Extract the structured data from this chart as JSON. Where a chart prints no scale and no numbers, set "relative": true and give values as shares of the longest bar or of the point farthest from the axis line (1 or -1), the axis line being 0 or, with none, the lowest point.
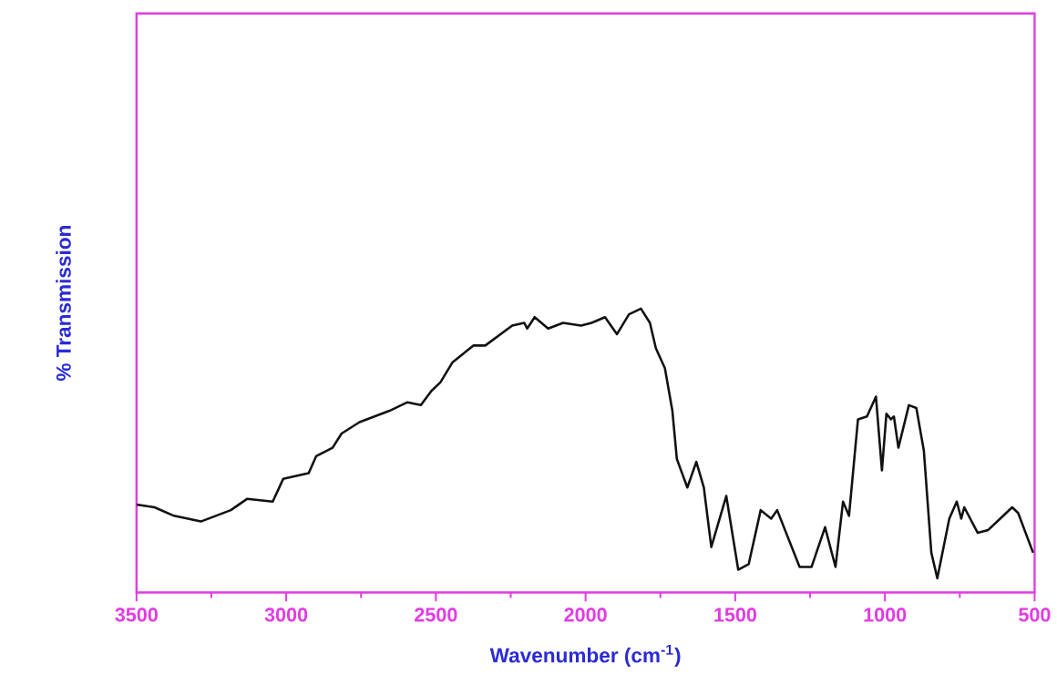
{
  "chart_data": {
    "type": "line",
    "relative": true,
    "xlabel": "Wavenumber  (cm$^{-1}$)",
    "ylabel": "% Transmission",
    "xlim": [
      3500,
      500
    ],
    "xticks": [
      3500,
      3000,
      2500,
      2000,
      1500,
      1000,
      500
    ],
    "x": [
      3500,
      3440,
      3375,
      3285,
      3185,
      3130,
      3045,
      3010,
      2925,
      2900,
      2845,
      2815,
      2755,
      2655,
      2595,
      2550,
      2515,
      2485,
      2445,
      2375,
      2335,
      2245,
      2205,
      2195,
      2170,
      2125,
      2075,
      2015,
      1980,
      1935,
      1895,
      1855,
      1815,
      1785,
      1765,
      1735,
      1710,
      1695,
      1660,
      1630,
      1605,
      1580,
      1530,
      1490,
      1455,
      1415,
      1380,
      1360,
      1285,
      1245,
      1200,
      1165,
      1140,
      1120,
      1090,
      1060,
      1030,
      1010,
      995,
      980,
      970,
      955,
      920,
      895,
      870,
      845,
      825,
      785,
      760,
      745,
      735,
      690,
      655,
      615,
      575,
      555,
      505
    ],
    "series": [
      {
        "color": "#111111",
        "values": [
          0.31,
          0.3,
          0.27,
          0.25,
          0.29,
          0.33,
          0.32,
          0.4,
          0.42,
          0.48,
          0.51,
          0.56,
          0.6,
          0.64,
          0.67,
          0.66,
          0.71,
          0.74,
          0.81,
          0.87,
          0.87,
          0.94,
          0.95,
          0.93,
          0.97,
          0.93,
          0.95,
          0.94,
          0.95,
          0.97,
          0.91,
          0.98,
          1.0,
          0.95,
          0.86,
          0.79,
          0.64,
          0.47,
          0.37,
          0.46,
          0.37,
          0.16,
          0.34,
          0.08,
          0.1,
          0.29,
          0.26,
          0.29,
          0.09,
          0.09,
          0.23,
          0.09,
          0.32,
          0.27,
          0.61,
          0.62,
          0.69,
          0.43,
          0.63,
          0.61,
          0.62,
          0.51,
          0.66,
          0.65,
          0.5,
          0.14,
          0.05,
          0.26,
          0.32,
          0.26,
          0.3,
          0.21,
          0.22,
          0.26,
          0.3,
          0.28,
          0.14
        ]
      }
    ]
  }
}
